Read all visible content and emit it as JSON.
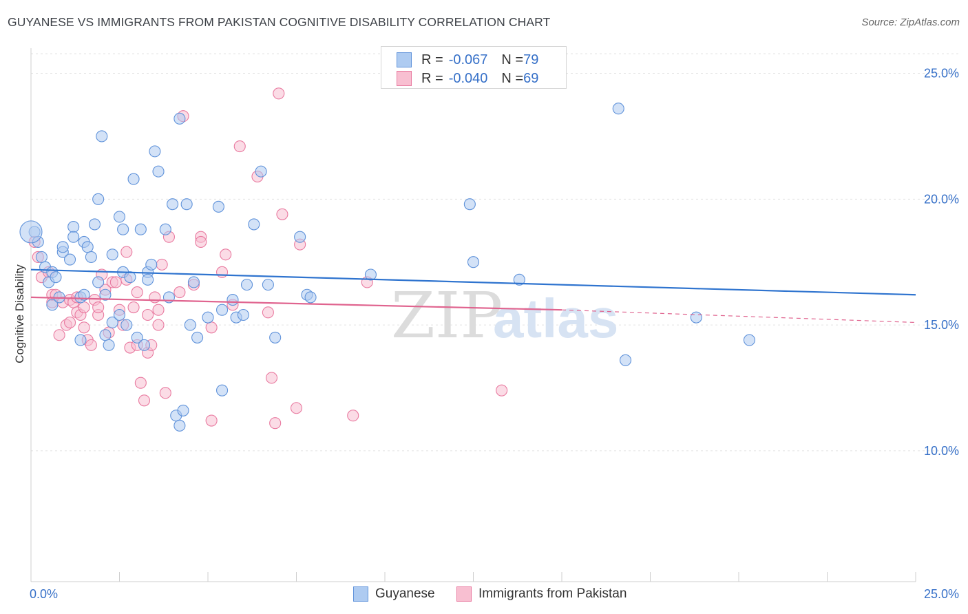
{
  "title": "GUYANESE VS IMMIGRANTS FROM PAKISTAN COGNITIVE DISABILITY CORRELATION CHART",
  "source": "Source: ZipAtlas.com",
  "watermark": {
    "zip": "ZIP",
    "atlas": "atlas"
  },
  "legend": {
    "series1": {
      "r_label": "R = ",
      "r_value": "-0.067",
      "n_label": "N = ",
      "n_value": "79"
    },
    "series2": {
      "r_label": "R = ",
      "r_value": "-0.040",
      "n_label": "N = ",
      "n_value": "69"
    }
  },
  "colors": {
    "blue_fill": "#aecbf1",
    "blue_stroke": "#5f92da",
    "blue_line": "#2f74cf",
    "pink_fill": "#f8bfd1",
    "pink_stroke": "#e97aa0",
    "pink_line": "#e0648f",
    "axis_text": "#3670c8",
    "grid": "#e3e3e3"
  },
  "chart_data": {
    "type": "scatter",
    "title": "GUYANESE VS IMMIGRANTS FROM PAKISTAN COGNITIVE DISABILITY CORRELATION CHART",
    "xlabel": "",
    "ylabel": "Cognitive Disability",
    "xlim": [
      0,
      25
    ],
    "ylim": [
      4.8,
      26
    ],
    "x_tick_labels": [
      "0.0%",
      "25.0%"
    ],
    "y_ticks": [
      10,
      15,
      20,
      25
    ],
    "y_tick_labels": [
      "10.0%",
      "15.0%",
      "20.0%",
      "25.0%"
    ],
    "series": [
      {
        "name": "Guyanese",
        "color": "blue",
        "trend": {
          "x": [
            0,
            25
          ],
          "y": [
            17.2,
            16.2
          ]
        },
        "points": [
          [
            0.1,
            18.7
          ],
          [
            0.2,
            18.3
          ],
          [
            0.3,
            17.7
          ],
          [
            0.4,
            17.3
          ],
          [
            0.5,
            16.7
          ],
          [
            0.6,
            15.8
          ],
          [
            0.6,
            17.1
          ],
          [
            0.7,
            16.9
          ],
          [
            0.8,
            16.1
          ],
          [
            0.9,
            17.9
          ],
          [
            0.9,
            18.1
          ],
          [
            1.1,
            17.6
          ],
          [
            1.2,
            18.9
          ],
          [
            1.2,
            18.5
          ],
          [
            1.4,
            16.1
          ],
          [
            1.5,
            18.3
          ],
          [
            1.4,
            14.4
          ],
          [
            1.5,
            16.2
          ],
          [
            1.6,
            18.1
          ],
          [
            1.7,
            17.7
          ],
          [
            1.8,
            19.0
          ],
          [
            1.9,
            20.0
          ],
          [
            1.9,
            16.7
          ],
          [
            2.0,
            22.5
          ],
          [
            2.1,
            14.6
          ],
          [
            2.1,
            16.2
          ],
          [
            2.2,
            14.2
          ],
          [
            2.3,
            17.8
          ],
          [
            2.3,
            15.1
          ],
          [
            2.5,
            15.4
          ],
          [
            2.5,
            19.3
          ],
          [
            2.6,
            18.8
          ],
          [
            2.6,
            17.1
          ],
          [
            2.7,
            15.0
          ],
          [
            2.8,
            16.9
          ],
          [
            2.9,
            20.8
          ],
          [
            3.0,
            14.5
          ],
          [
            3.1,
            18.8
          ],
          [
            3.2,
            14.2
          ],
          [
            3.3,
            17.1
          ],
          [
            3.3,
            16.8
          ],
          [
            3.4,
            17.4
          ],
          [
            3.5,
            21.9
          ],
          [
            3.6,
            21.1
          ],
          [
            3.8,
            18.8
          ],
          [
            3.9,
            16.1
          ],
          [
            4.0,
            19.8
          ],
          [
            4.1,
            11.4
          ],
          [
            4.2,
            11.0
          ],
          [
            4.2,
            23.2
          ],
          [
            4.3,
            11.6
          ],
          [
            4.4,
            19.8
          ],
          [
            4.5,
            15.0
          ],
          [
            4.6,
            16.7
          ],
          [
            4.7,
            14.5
          ],
          [
            5.0,
            15.3
          ],
          [
            5.3,
            19.7
          ],
          [
            5.4,
            15.6
          ],
          [
            5.4,
            12.4
          ],
          [
            5.7,
            16.0
          ],
          [
            5.8,
            15.3
          ],
          [
            6.0,
            15.4
          ],
          [
            6.1,
            16.6
          ],
          [
            6.3,
            19.0
          ],
          [
            6.5,
            21.1
          ],
          [
            6.7,
            16.6
          ],
          [
            6.9,
            14.5
          ],
          [
            7.6,
            18.5
          ],
          [
            7.8,
            16.2
          ],
          [
            7.9,
            16.1
          ],
          [
            9.6,
            17.0
          ],
          [
            12.4,
            19.8
          ],
          [
            12.5,
            17.5
          ],
          [
            13.8,
            16.8
          ],
          [
            16.6,
            23.6
          ],
          [
            16.8,
            13.6
          ],
          [
            18.8,
            15.3
          ],
          [
            20.3,
            14.4
          ],
          [
            0.0,
            18.7
          ]
        ]
      },
      {
        "name": "Immigrants from Pakistan",
        "color": "pink",
        "trend": {
          "x": [
            0,
            15
          ],
          "y": [
            16.1,
            15.6
          ],
          "dashed_x": [
            15,
            25
          ],
          "dashed_y": [
            15.6,
            15.1
          ]
        },
        "points": [
          [
            0.1,
            18.3
          ],
          [
            0.2,
            17.7
          ],
          [
            0.3,
            16.9
          ],
          [
            0.5,
            17.1
          ],
          [
            0.6,
            15.9
          ],
          [
            0.6,
            16.2
          ],
          [
            0.7,
            16.2
          ],
          [
            0.8,
            14.6
          ],
          [
            0.9,
            15.9
          ],
          [
            1.0,
            15.0
          ],
          [
            1.1,
            16.0
          ],
          [
            1.1,
            15.1
          ],
          [
            1.2,
            15.9
          ],
          [
            1.3,
            16.1
          ],
          [
            1.3,
            15.5
          ],
          [
            1.4,
            15.4
          ],
          [
            1.5,
            15.7
          ],
          [
            1.5,
            14.9
          ],
          [
            1.6,
            14.4
          ],
          [
            1.7,
            14.2
          ],
          [
            1.8,
            16.0
          ],
          [
            1.9,
            15.4
          ],
          [
            1.9,
            15.7
          ],
          [
            2.0,
            17.0
          ],
          [
            2.1,
            16.4
          ],
          [
            2.2,
            14.7
          ],
          [
            2.3,
            16.7
          ],
          [
            2.4,
            16.7
          ],
          [
            2.5,
            15.6
          ],
          [
            2.6,
            15.0
          ],
          [
            2.7,
            17.9
          ],
          [
            2.7,
            16.8
          ],
          [
            2.8,
            14.1
          ],
          [
            2.9,
            15.7
          ],
          [
            3.0,
            16.3
          ],
          [
            3.0,
            14.2
          ],
          [
            3.1,
            12.7
          ],
          [
            3.2,
            12.0
          ],
          [
            3.3,
            13.9
          ],
          [
            3.3,
            15.4
          ],
          [
            3.4,
            14.2
          ],
          [
            3.5,
            16.1
          ],
          [
            3.6,
            15.0
          ],
          [
            3.6,
            15.6
          ],
          [
            3.7,
            17.4
          ],
          [
            3.8,
            12.3
          ],
          [
            3.9,
            18.5
          ],
          [
            4.2,
            16.3
          ],
          [
            4.3,
            23.3
          ],
          [
            4.6,
            16.6
          ],
          [
            4.8,
            18.5
          ],
          [
            4.8,
            18.3
          ],
          [
            5.1,
            14.9
          ],
          [
            5.1,
            11.2
          ],
          [
            5.4,
            17.1
          ],
          [
            5.5,
            17.8
          ],
          [
            5.7,
            15.8
          ],
          [
            5.9,
            22.1
          ],
          [
            6.4,
            20.9
          ],
          [
            6.7,
            15.5
          ],
          [
            6.8,
            12.9
          ],
          [
            6.9,
            11.1
          ],
          [
            7.0,
            24.2
          ],
          [
            7.1,
            19.4
          ],
          [
            7.5,
            11.7
          ],
          [
            7.6,
            18.2
          ],
          [
            9.1,
            11.4
          ],
          [
            9.5,
            16.7
          ],
          [
            13.3,
            12.4
          ]
        ]
      }
    ]
  },
  "bottom_legend": {
    "item1": "Guyanese",
    "item2": "Immigrants from Pakistan"
  }
}
